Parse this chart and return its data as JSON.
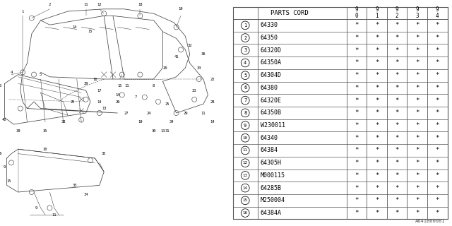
{
  "bg_color": "#ffffff",
  "table_header": "PARTS CORD",
  "year_cols": [
    "9\n0",
    "9\n1",
    "9\n2",
    "9\n3",
    "9\n4"
  ],
  "rows": [
    {
      "num": "1",
      "part": "64330",
      "vals": [
        "*",
        "*",
        "*",
        "*",
        "*"
      ]
    },
    {
      "num": "2",
      "part": "64350",
      "vals": [
        "*",
        "*",
        "*",
        "*",
        "*"
      ]
    },
    {
      "num": "3",
      "part": "64320D",
      "vals": [
        "*",
        "*",
        "*",
        "*",
        "*"
      ]
    },
    {
      "num": "4",
      "part": "64350A",
      "vals": [
        "*",
        "*",
        "*",
        "*",
        "*"
      ]
    },
    {
      "num": "5",
      "part": "64304D",
      "vals": [
        "*",
        "*",
        "*",
        "*",
        "*"
      ]
    },
    {
      "num": "6",
      "part": "64380",
      "vals": [
        "*",
        "*",
        "*",
        "*",
        "*"
      ]
    },
    {
      "num": "7",
      "part": "64320E",
      "vals": [
        "*",
        "*",
        "*",
        "*",
        "*"
      ]
    },
    {
      "num": "8",
      "part": "64350B",
      "vals": [
        "*",
        "*",
        "*",
        "*",
        "*"
      ]
    },
    {
      "num": "9",
      "part": "W230011",
      "vals": [
        "*",
        "*",
        "*",
        "*",
        "*"
      ]
    },
    {
      "num": "10",
      "part": "64340",
      "vals": [
        "*",
        "*",
        "*",
        "*",
        "*"
      ]
    },
    {
      "num": "11",
      "part": "64384",
      "vals": [
        "*",
        "*",
        "*",
        "*",
        "*"
      ]
    },
    {
      "num": "12",
      "part": "64305H",
      "vals": [
        "*",
        "*",
        "*",
        "*",
        "*"
      ]
    },
    {
      "num": "13",
      "part": "M000115",
      "vals": [
        "*",
        "*",
        "*",
        "*",
        "*"
      ]
    },
    {
      "num": "14",
      "part": "64285B",
      "vals": [
        "*",
        "*",
        "*",
        "*",
        "*"
      ]
    },
    {
      "num": "15",
      "part": "M250004",
      "vals": [
        "*",
        "*",
        "*",
        "*",
        "*"
      ]
    },
    {
      "num": "16",
      "part": "64384A",
      "vals": [
        "*",
        "*",
        "*",
        "*",
        "*"
      ]
    }
  ],
  "watermark": "A641B00081",
  "lc": "#444444",
  "tc": "#000000",
  "bc": "#555555"
}
